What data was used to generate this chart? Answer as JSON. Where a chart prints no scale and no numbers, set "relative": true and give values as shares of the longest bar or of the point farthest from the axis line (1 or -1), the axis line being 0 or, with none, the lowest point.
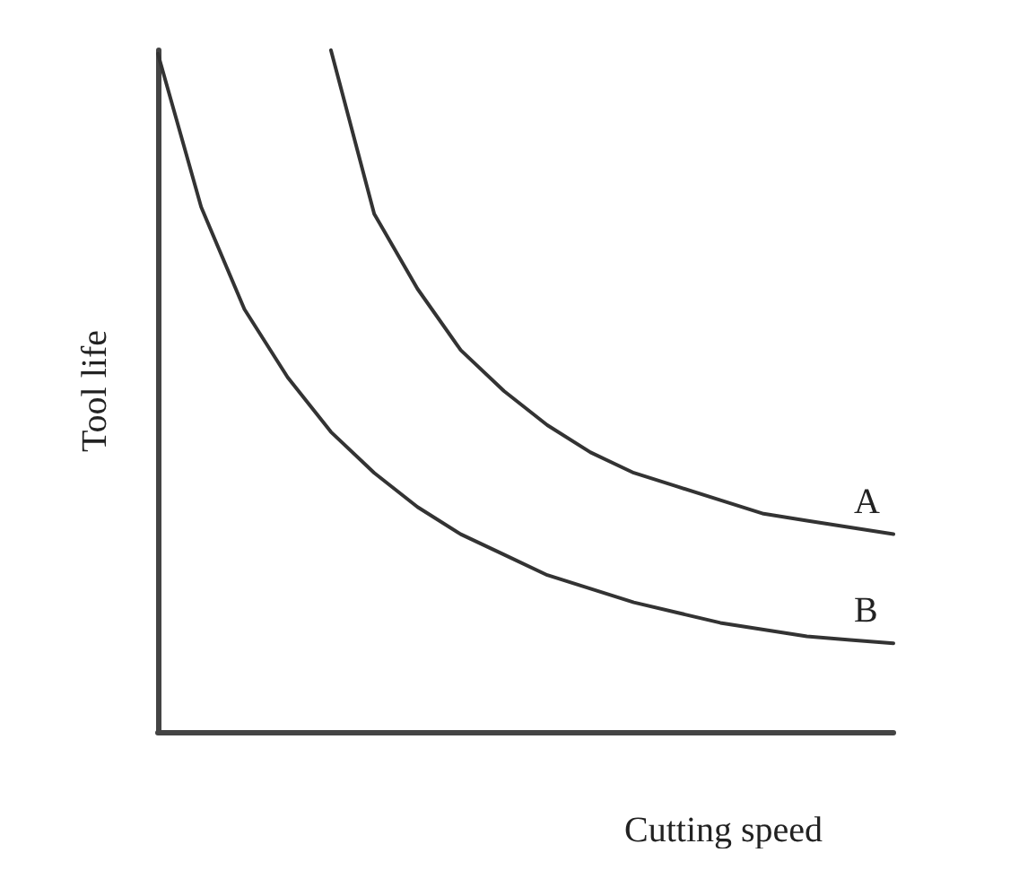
{
  "chart_data": {
    "type": "line",
    "relative": true,
    "xlabel": "Cutting speed",
    "ylabel": "Tool life",
    "categories": [
      null,
      null,
      null,
      null,
      null,
      null,
      null,
      null,
      null,
      null,
      null,
      null,
      null,
      null,
      null,
      null,
      null,
      null
    ],
    "series": [
      {
        "name": "A",
        "color": "#333333",
        "values": [
          null,
          null,
          null,
          null,
          1.0,
          0.76,
          0.65,
          0.56,
          0.5,
          0.45,
          0.41,
          0.38,
          0.36,
          0.34,
          0.32,
          0.31,
          0.3,
          0.29
        ]
      },
      {
        "name": "B",
        "color": "#333333",
        "values": [
          0.995,
          0.77,
          0.62,
          0.52,
          0.44,
          0.38,
          0.33,
          0.29,
          0.26,
          0.23,
          0.21,
          0.19,
          0.175,
          0.16,
          0.15,
          0.14,
          0.135,
          0.13
        ]
      }
    ],
    "legend": false,
    "grid": false,
    "marker": "none",
    "line_style": "solid"
  }
}
